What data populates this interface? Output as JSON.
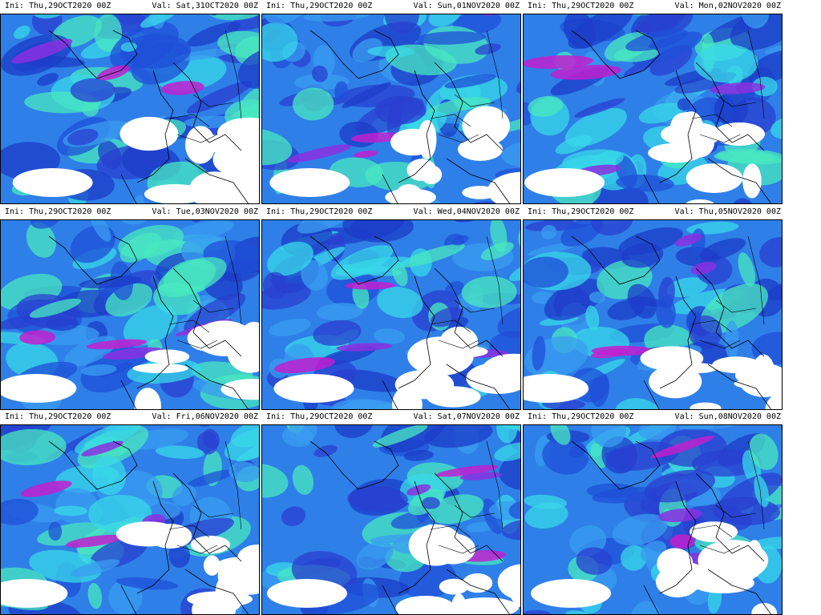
{
  "panels": [
    {
      "ini": "Ini: Thu,29OCT2020 00Z",
      "val": "Val: Sat,31OCT2020 00Z"
    },
    {
      "ini": "Ini: Thu,29OCT2020 00Z",
      "val": "Val: Sun,01NOV2020 00Z"
    },
    {
      "ini": "Ini: Thu,29OCT2020 00Z",
      "val": "Val: Mon,02NOV2020 00Z"
    },
    {
      "ini": "Ini: Thu,29OCT2020 00Z",
      "val": "Val: Tue,03NOV2020 00Z"
    },
    {
      "ini": "Ini: Thu,29OCT2020 00Z",
      "val": "Val: Wed,04NOV2020 00Z"
    },
    {
      "ini": "Ini: Thu,29OCT2020 00Z",
      "val": "Val: Thu,05NOV2020 00Z"
    },
    {
      "ini": "Ini: Thu,29OCT2020 00Z",
      "val": "Val: Fri,06NOV2020 00Z"
    },
    {
      "ini": "Ini: Thu,29OCT2020 00Z",
      "val": "Val: Sat,07NOV2020 00Z"
    },
    {
      "ini": "Ini: Thu,29OCT2020 00Z",
      "val": "Val: Sun,08NOV2020 00Z"
    }
  ]
}
